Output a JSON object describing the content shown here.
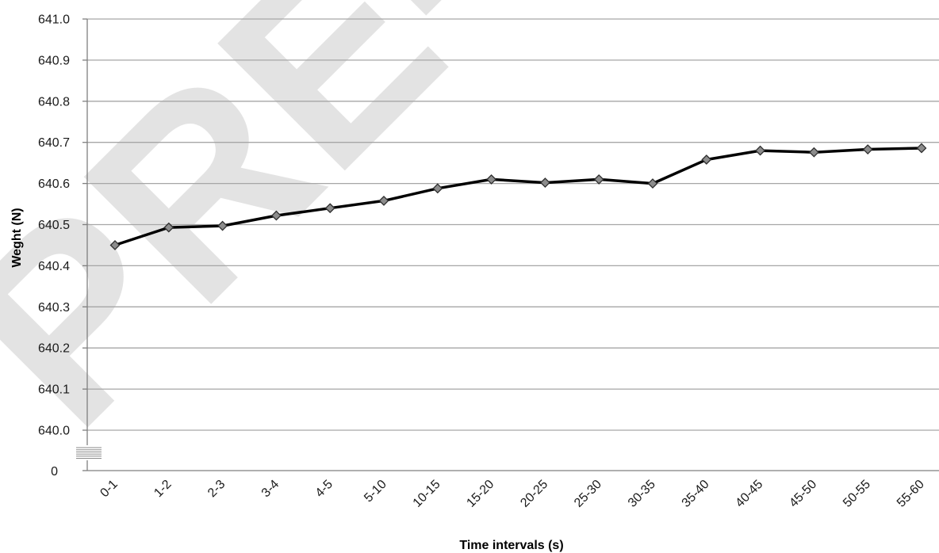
{
  "chart_data": {
    "type": "line",
    "xlabel": "Time intervals (s)",
    "ylabel": "Weght (N)",
    "categories": [
      "0-1",
      "1-2",
      "2-3",
      "3-4",
      "4-5",
      "5-10",
      "10-15",
      "15-20",
      "20-25",
      "25-30",
      "30-35",
      "35-40",
      "40-45",
      "45-50",
      "50-55",
      "55-60"
    ],
    "series": [
      {
        "values": [
          640.45,
          640.493,
          640.497,
          640.522,
          640.54,
          640.558,
          640.588,
          640.61,
          640.602,
          640.61,
          640.6,
          640.658,
          640.68,
          640.676,
          640.683,
          640.686
        ]
      }
    ],
    "ylim": [
      640.0,
      641.0
    ],
    "yticks": [
      "641.0",
      "640.9",
      "640.8",
      "640.7",
      "640.6",
      "640.5",
      "640.4",
      "640.3",
      "640.2",
      "640.1",
      "640.0"
    ],
    "y_zero_label": "0",
    "axis_break": true,
    "grid": true,
    "legend": "none",
    "line_color": "#000000",
    "marker_color": "#8c8c8c",
    "grid_color": "#a6a6a6"
  },
  "watermark": {
    "text": "PRE-I"
  }
}
